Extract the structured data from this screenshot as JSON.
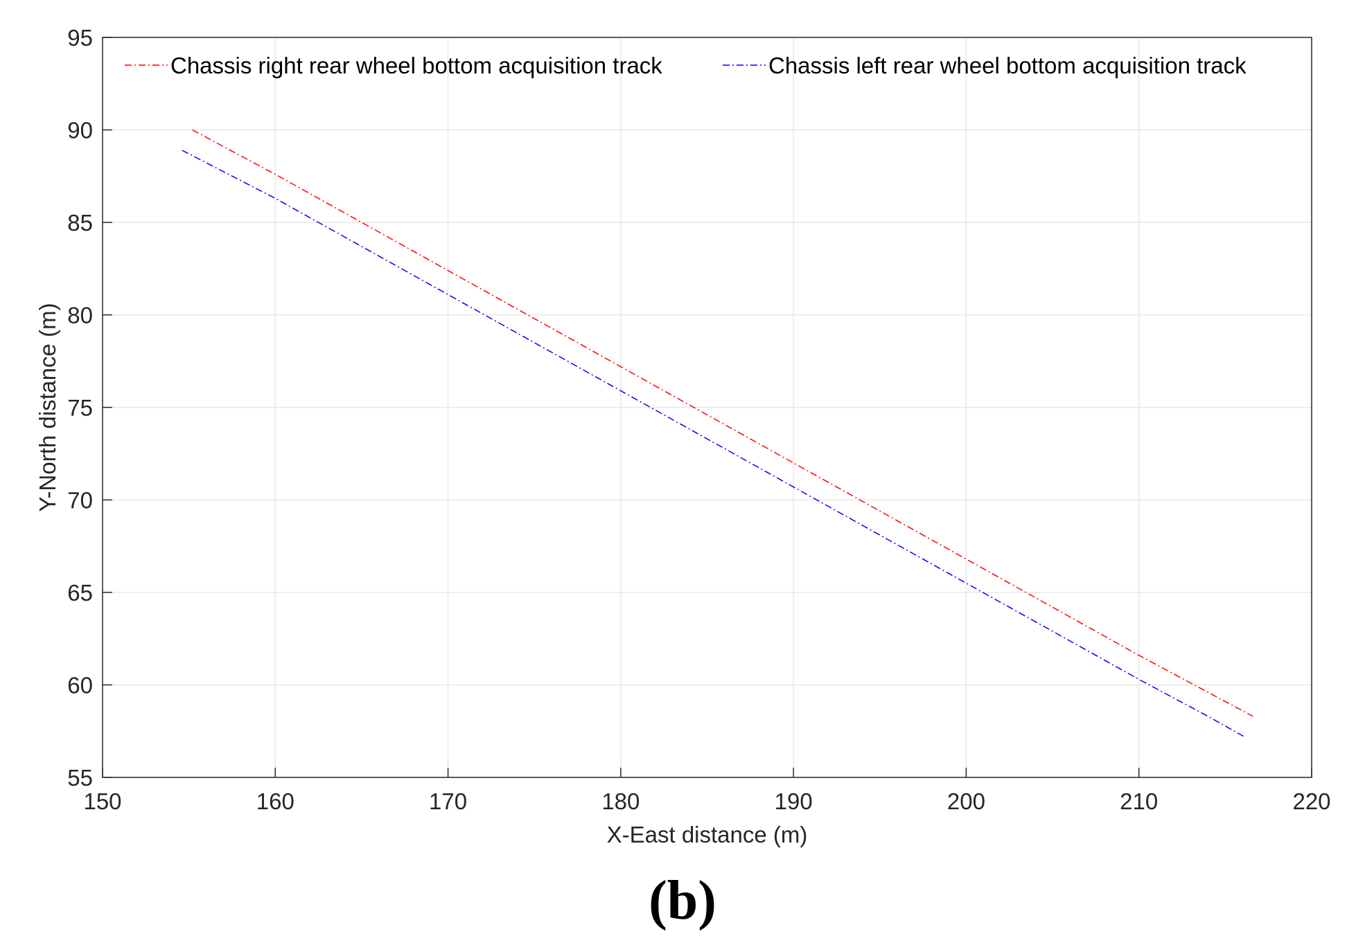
{
  "chart_data": {
    "type": "line",
    "xlabel": "X-East distance (m)",
    "ylabel": "Y-North distance (m)",
    "xlim": [
      150,
      220
    ],
    "ylim": [
      55,
      95
    ],
    "xticks": [
      150,
      160,
      170,
      180,
      190,
      200,
      210,
      220
    ],
    "yticks": [
      55,
      60,
      65,
      70,
      75,
      80,
      85,
      90,
      95
    ],
    "grid": true,
    "legend_position": "top",
    "series": [
      {
        "name": "Chassis right rear wheel bottom acquisition track",
        "color": "#ff0000",
        "line_style": "dash-dot",
        "x": [
          155.2,
          160,
          165,
          170,
          175,
          180,
          185,
          190,
          195,
          200,
          205,
          210,
          214,
          216.6
        ],
        "y": [
          90.0,
          87.6,
          85.0,
          82.4,
          79.8,
          77.2,
          74.6,
          72.0,
          69.4,
          66.8,
          64.2,
          61.6,
          59.6,
          58.3
        ]
      },
      {
        "name": "Chassis left rear wheel bottom acquisition track",
        "color": "#0000ff",
        "line_style": "dash-dot",
        "x": [
          154.6,
          160,
          165,
          170,
          175,
          180,
          185,
          190,
          195,
          200,
          205,
          210,
          214,
          216.1
        ],
        "y": [
          88.9,
          86.3,
          83.7,
          81.1,
          78.5,
          75.9,
          73.3,
          70.7,
          68.1,
          65.5,
          62.9,
          60.3,
          58.3,
          57.2
        ]
      }
    ]
  },
  "panel_label": "(b)"
}
